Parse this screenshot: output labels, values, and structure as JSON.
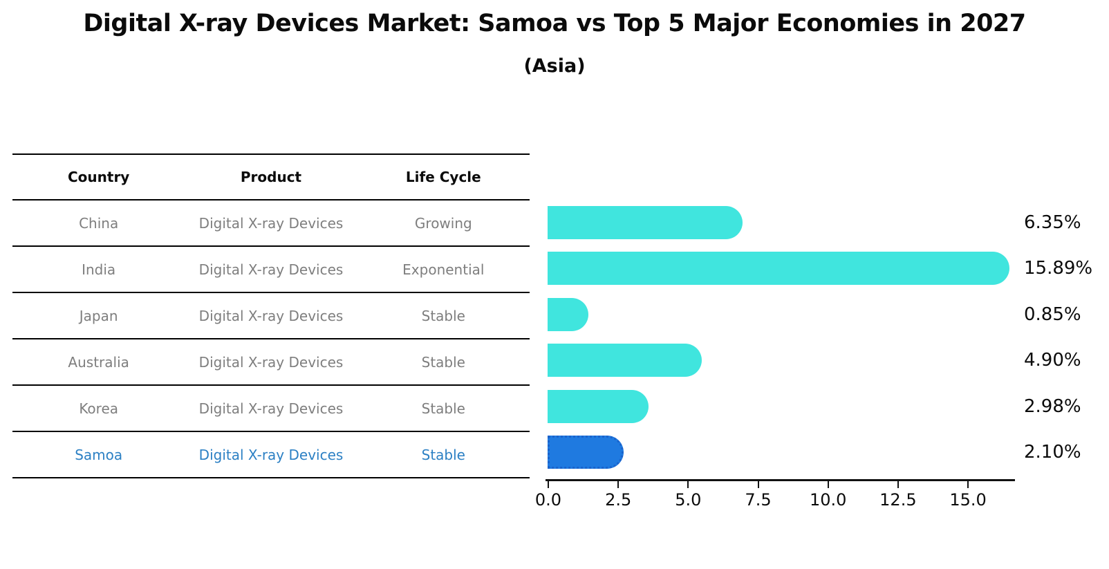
{
  "header": {
    "title": "Digital X-ray Devices Market: Samoa vs Top 5 Major Economies in 2027",
    "subtitle": "(Asia)"
  },
  "table": {
    "columns": [
      "Country",
      "Product",
      "Life Cycle"
    ],
    "rows": [
      {
        "country": "China",
        "product": "Digital X-ray Devices",
        "life_cycle": "Growing",
        "highlighted": false
      },
      {
        "country": "India",
        "product": "Digital X-ray Devices",
        "life_cycle": "Exponential",
        "highlighted": false
      },
      {
        "country": "Japan",
        "product": "Digital X-ray Devices",
        "life_cycle": "Stable",
        "highlighted": false
      },
      {
        "country": "Australia",
        "product": "Digital X-ray Devices",
        "life_cycle": "Stable",
        "highlighted": false
      },
      {
        "country": "Korea",
        "product": "Digital X-ray Devices",
        "life_cycle": "Stable",
        "highlighted": false
      },
      {
        "country": "Samoa",
        "product": "Digital X-ray Devices",
        "life_cycle": "Stable",
        "highlighted": true
      }
    ]
  },
  "chart_data": {
    "type": "bar",
    "orientation": "horizontal",
    "title": "Digital X-ray Devices Market: Samoa vs Top 5 Major Economies in 2027",
    "subtitle": "(Asia)",
    "categories": [
      "China",
      "India",
      "Japan",
      "Australia",
      "Korea",
      "Samoa"
    ],
    "values": [
      6.35,
      15.89,
      0.85,
      4.9,
      2.98,
      2.1
    ],
    "value_labels": [
      "6.35%",
      "15.89%",
      "0.85%",
      "4.90%",
      "2.98%",
      "2.10%"
    ],
    "highlight_index": 5,
    "x_ticks": [
      0.0,
      2.5,
      5.0,
      7.5,
      10.0,
      12.5,
      15.0
    ],
    "x_tick_labels": [
      "0.0",
      "2.5",
      "5.0",
      "7.5",
      "10.0",
      "12.5",
      "15.0"
    ],
    "xlim": [
      0,
      16.7
    ],
    "grid": false,
    "legend": "none",
    "bar_style": "rounded-right-cap"
  },
  "colors": {
    "bar": "#40e5de",
    "highlight_bar": "#1f7ae0",
    "highlight_bar_border": "#1a63cc",
    "highlight_text": "#2c80c4",
    "table_text": "#7e7e7e",
    "heading_text": "#0b0b0b",
    "axis": "#111111",
    "background": "#ffffff"
  }
}
